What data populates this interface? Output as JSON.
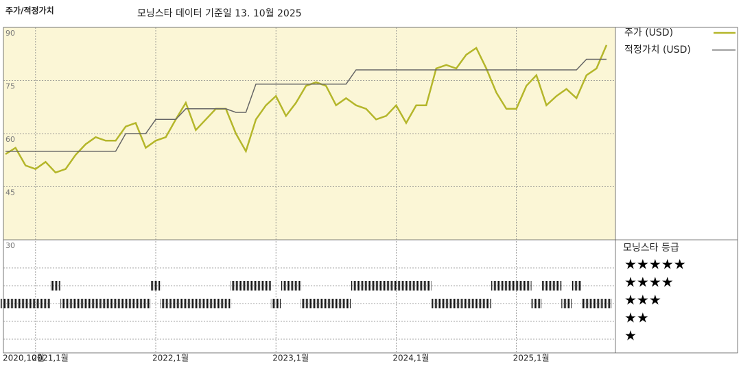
{
  "chart_data": {
    "type": "line",
    "title": "주가/적정가치",
    "subtitle": "모닝스타 데이터 기준일 13. 10월 2025",
    "x": [
      "2020-10",
      "2020-11",
      "2020-12",
      "2021-01",
      "2021-02",
      "2021-03",
      "2021-04",
      "2021-05",
      "2021-06",
      "2021-07",
      "2021-08",
      "2021-09",
      "2021-10",
      "2021-11",
      "2021-12",
      "2022-01",
      "2022-02",
      "2022-03",
      "2022-04",
      "2022-05",
      "2022-06",
      "2022-07",
      "2022-08",
      "2022-09",
      "2022-10",
      "2022-11",
      "2022-12",
      "2023-01",
      "2023-02",
      "2023-03",
      "2023-04",
      "2023-05",
      "2023-06",
      "2023-07",
      "2023-08",
      "2023-09",
      "2023-10",
      "2023-11",
      "2023-12",
      "2024-01",
      "2024-02",
      "2024-03",
      "2024-04",
      "2024-05",
      "2024-06",
      "2024-07",
      "2024-08",
      "2024-09",
      "2024-10",
      "2024-11",
      "2024-12",
      "2025-01",
      "2025-02",
      "2025-03",
      "2025-04",
      "2025-05",
      "2025-06",
      "2025-07",
      "2025-08",
      "2025-09",
      "2025-10"
    ],
    "series": [
      {
        "name": "주가 (USD)",
        "color": "#b4b62a",
        "values": [
          54.2,
          56,
          51,
          50,
          52,
          49,
          50,
          54,
          57,
          59,
          58,
          58,
          62,
          63,
          56,
          58,
          59,
          64,
          68.7,
          61,
          64,
          67,
          67,
          60,
          55,
          64,
          68,
          70.6,
          65,
          68.7,
          73.5,
          74.5,
          73.5,
          68,
          70,
          68,
          67,
          64,
          65,
          68,
          63,
          68,
          68,
          78.4,
          79.4,
          78.4,
          82.3,
          84.2,
          78.4,
          71.6,
          67,
          67,
          73.5,
          76.5,
          68,
          70.6,
          72.6,
          70,
          76.5,
          78.4,
          85
        ]
      },
      {
        "name": "적정가치 (USD)",
        "color": "#666666",
        "values": [
          55,
          55,
          55,
          55,
          55,
          55,
          55,
          55,
          55,
          55,
          55,
          55,
          60,
          60,
          60,
          64,
          64,
          64,
          67,
          67,
          67,
          67,
          67,
          66,
          66,
          74,
          74,
          74,
          74,
          74,
          74,
          74,
          74,
          74,
          74,
          78,
          78,
          78,
          78,
          78,
          78,
          78,
          78,
          78,
          78,
          78,
          78,
          78,
          78,
          78,
          78,
          78,
          78,
          78,
          78,
          78,
          78,
          78,
          81,
          81,
          81
        ]
      }
    ],
    "xlim": [
      "2020-10",
      "2025-10"
    ],
    "xticks": [
      {
        "value": "2020-10",
        "label": "2020,10월"
      },
      {
        "value": "2021-01",
        "label": "2021,1월"
      },
      {
        "value": "2022-01",
        "label": "2022,1월"
      },
      {
        "value": "2023-01",
        "label": "2023,1월"
      },
      {
        "value": "2024-01",
        "label": "2024,1월"
      },
      {
        "value": "2025-01",
        "label": "2025,1월"
      }
    ],
    "ylim": [
      30,
      90
    ],
    "yticks": [
      30,
      45,
      60,
      75,
      90
    ],
    "grid": true,
    "legend": "upper right",
    "rating": {
      "title": "모닝스타 등급",
      "levels": [
        {
          "value": 5,
          "label": "★★★★★"
        },
        {
          "value": 4,
          "label": "★★★★"
        },
        {
          "value": 3,
          "label": "★★★"
        },
        {
          "value": 2,
          "label": "★★"
        },
        {
          "value": 1,
          "label": "★"
        }
      ],
      "values": [
        3,
        3,
        3,
        3,
        3,
        4,
        3,
        3,
        3,
        3,
        3,
        3,
        3,
        3,
        3,
        4,
        3,
        3,
        3,
        3,
        3,
        3,
        3,
        4,
        4,
        4,
        4,
        3,
        4,
        4,
        3,
        3,
        3,
        3,
        3,
        4,
        4,
        4,
        4,
        4,
        4,
        4,
        4,
        3,
        3,
        3,
        3,
        3,
        3,
        4,
        4,
        4,
        4,
        3,
        4,
        4,
        3,
        4,
        3,
        3,
        3
      ]
    }
  }
}
